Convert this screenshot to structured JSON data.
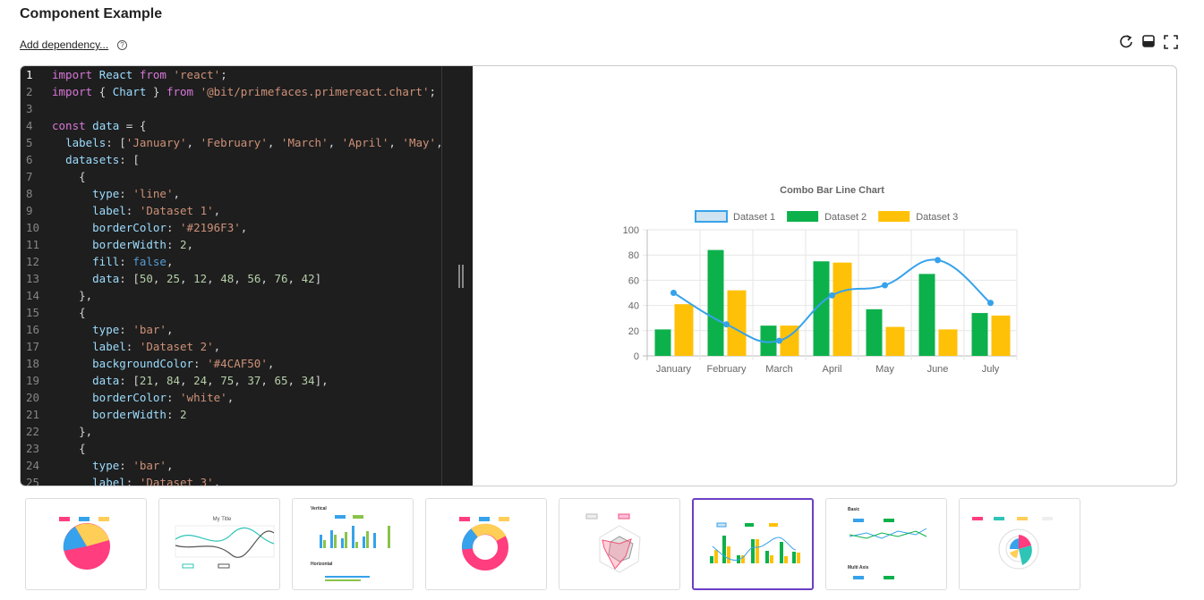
{
  "header": {
    "title": "Component Example",
    "link": "Add dependency..."
  },
  "editor": {
    "line_numbers": [
      1,
      2,
      3,
      4,
      5,
      6,
      7,
      8,
      9,
      10,
      11,
      12,
      13,
      14,
      15,
      16,
      17,
      18,
      19,
      20,
      21,
      22,
      23,
      24,
      25
    ],
    "lines": [
      "import React from 'react';",
      "import { Chart } from '@bit/primefaces.primereact.chart';",
      null,
      "const data = {",
      "  labels: ['January', 'February', 'March', 'April', 'May',",
      "  datasets: [",
      "    {",
      "      type: 'line',",
      "      label: 'Dataset 1',",
      "      borderColor: '#2196F3',",
      "      borderWidth: 2,",
      "      fill: false,",
      "      data: [50, 25, 12, 48, 56, 76, 42]",
      "    },",
      "    {",
      "      type: 'bar',",
      "      label: 'Dataset 2',",
      "      backgroundColor: '#4CAF50',",
      "      data: [21, 84, 24, 75, 37, 65, 34],",
      "      borderColor: 'white',",
      "      borderWidth: 2",
      "    },",
      "    {",
      "      type: 'bar',",
      "      label: 'Dataset 3',"
    ]
  },
  "chart_data": {
    "type": "bar",
    "title": "Combo Bar Line Chart",
    "categories": [
      "January",
      "February",
      "March",
      "April",
      "May",
      "June",
      "July"
    ],
    "series": [
      {
        "name": "Dataset 1",
        "type": "line",
        "color": "#36a2eb",
        "values": [
          50,
          25,
          12,
          48,
          56,
          76,
          42
        ]
      },
      {
        "name": "Dataset 2",
        "type": "bar",
        "color": "#0db14b",
        "values": [
          21,
          84,
          24,
          75,
          37,
          65,
          34
        ]
      },
      {
        "name": "Dataset 3",
        "type": "bar",
        "color": "#ffc107",
        "values": [
          41,
          52,
          24,
          74,
          23,
          21,
          32
        ]
      }
    ],
    "ylim": [
      0,
      100
    ],
    "yticks": [
      0,
      20,
      40,
      60,
      80,
      100
    ],
    "grid": true,
    "legend": "top"
  },
  "thumbnail_texts": {
    "my_title": "My Title",
    "vertical": "Vertical",
    "horizontal": "Horizontal",
    "basic": "Basic",
    "multi_axis": "Multi Axis"
  }
}
